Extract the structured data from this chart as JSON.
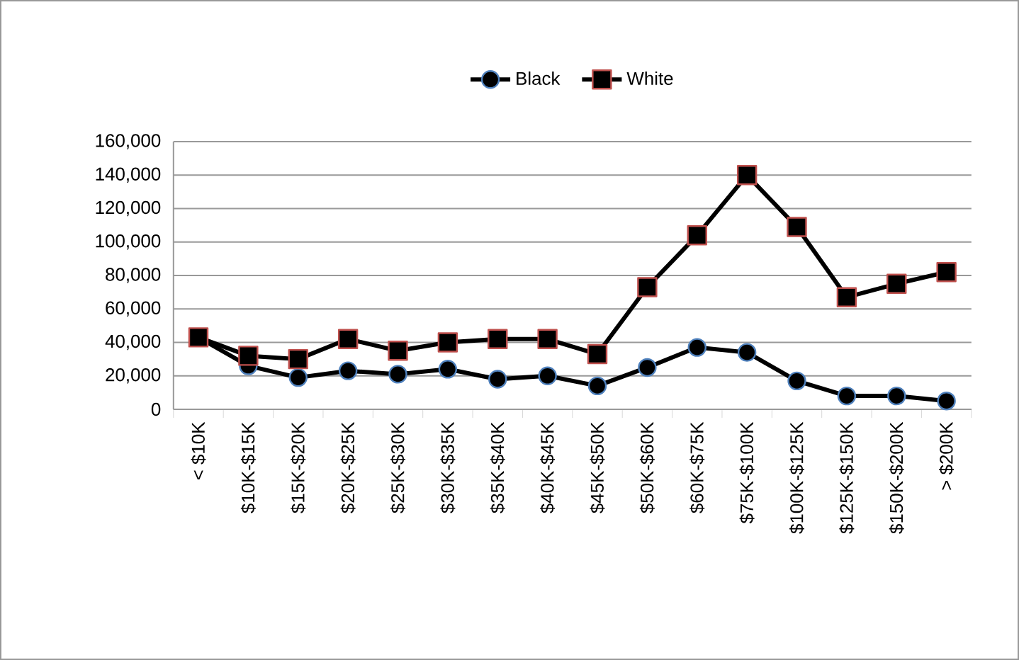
{
  "chart_data": {
    "type": "line",
    "categories": [
      "< $10K",
      "$10K-$15K",
      "$15K-$20K",
      "$20K-$25K",
      "$25K-$30K",
      "$30K-$35K",
      "$35K-$40K",
      "$40K-$45K",
      "$45K-$50K",
      "$50K-$60K",
      "$60K-$75K",
      "$75K-$100K",
      "$100K-$125K",
      "$125K-$150K",
      "$150K-$200K",
      "> $200K"
    ],
    "series": [
      {
        "name": "Black",
        "color": "#4f81bd",
        "marker": "circle",
        "values": [
          43000,
          26000,
          19000,
          23000,
          21000,
          24000,
          18000,
          20000,
          14000,
          25000,
          37000,
          34000,
          17000,
          8000,
          8000,
          5000
        ]
      },
      {
        "name": "White",
        "color": "#c0504d",
        "marker": "square",
        "values": [
          43000,
          32000,
          30000,
          42000,
          35000,
          40000,
          42000,
          42000,
          33000,
          73000,
          104000,
          140000,
          109000,
          67000,
          75000,
          82000
        ]
      }
    ],
    "ylim": [
      0,
      160000
    ],
    "yticks": [
      {
        "value": 0,
        "label": "0"
      },
      {
        "value": 20000,
        "label": "20,000"
      },
      {
        "value": 40000,
        "label": "40,000"
      },
      {
        "value": 60000,
        "label": "60,000"
      },
      {
        "value": 80000,
        "label": "80,000"
      },
      {
        "value": 100000,
        "label": "100,000"
      },
      {
        "value": 120000,
        "label": "120,000"
      },
      {
        "value": 140000,
        "label": "140,000"
      },
      {
        "value": 160000,
        "label": "160,000"
      }
    ],
    "grid": "y",
    "legend": "top",
    "line_style": "solid"
  }
}
